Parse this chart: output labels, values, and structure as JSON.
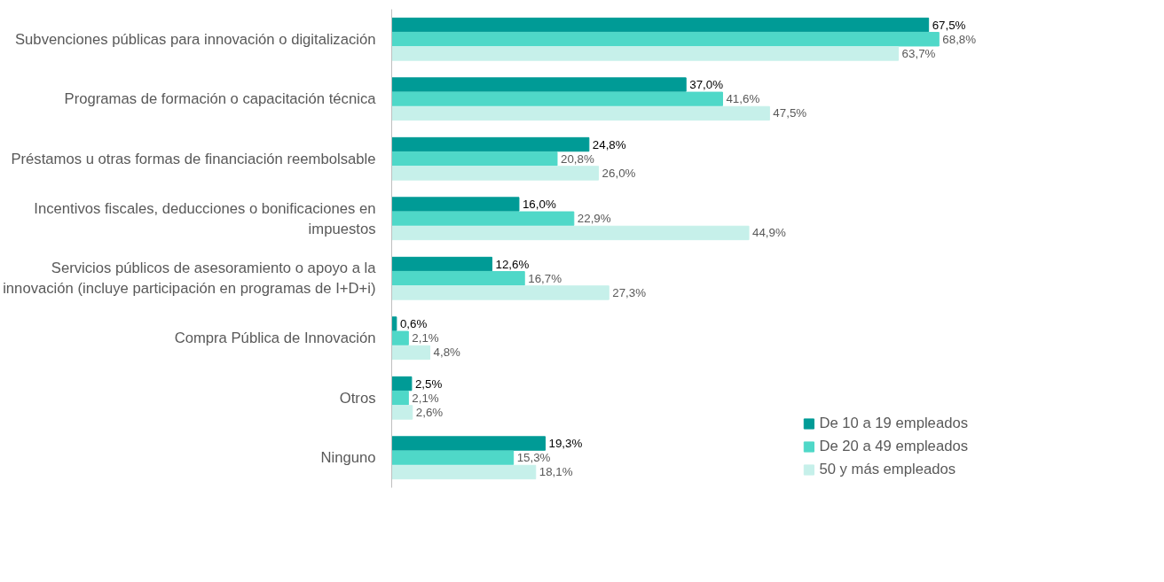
{
  "chart_data": {
    "type": "bar",
    "orientation": "horizontal",
    "tick_labels": "y",
    "legend": "bottom",
    "grid": false,
    "categories": [
      "Subvenciones públicas para innovación o digitalización",
      "Programas de formación o capacitación técnica",
      "Préstamos u otras formas de financiación reembolsable",
      "Incentivos fiscales, deducciones o bonificaciones en impuestos",
      "Servicios públicos de asesoramiento o apoyo a la innovación (incluye participación en programas de I+D+i)",
      "Compra Pública de Innovación",
      "Otros",
      "Ninguno"
    ],
    "series": [
      {
        "name": "De 10 a 19 empleados",
        "color": "#009b96",
        "values": [
          67.5,
          37.0,
          24.8,
          16.0,
          12.6,
          0.6,
          2.5,
          19.3
        ],
        "value_labels": [
          "67,5%",
          "37,0%",
          "24,8%",
          "16,0%",
          "12,6%",
          "0,6%",
          "2,5%",
          "19,3%"
        ]
      },
      {
        "name": "De 20 a 49 empleados",
        "color": "#4fd8c8",
        "values": [
          68.8,
          41.6,
          20.8,
          22.9,
          16.7,
          2.1,
          2.1,
          15.3
        ],
        "value_labels": [
          "68,8%",
          "41,6%",
          "20,8%",
          "22,9%",
          "16,7%",
          "2,1%",
          "2,1%",
          "15,3%"
        ]
      },
      {
        "name": "50 y más empleados",
        "color": "#c6f0ea",
        "values": [
          63.7,
          47.5,
          26.0,
          44.9,
          27.3,
          4.8,
          2.6,
          18.1
        ],
        "value_labels": [
          "63,7%",
          "47,5%",
          "26,0%",
          "44,9%",
          "27,3%",
          "4,8%",
          "2,6%",
          "18,1%"
        ]
      }
    ]
  }
}
